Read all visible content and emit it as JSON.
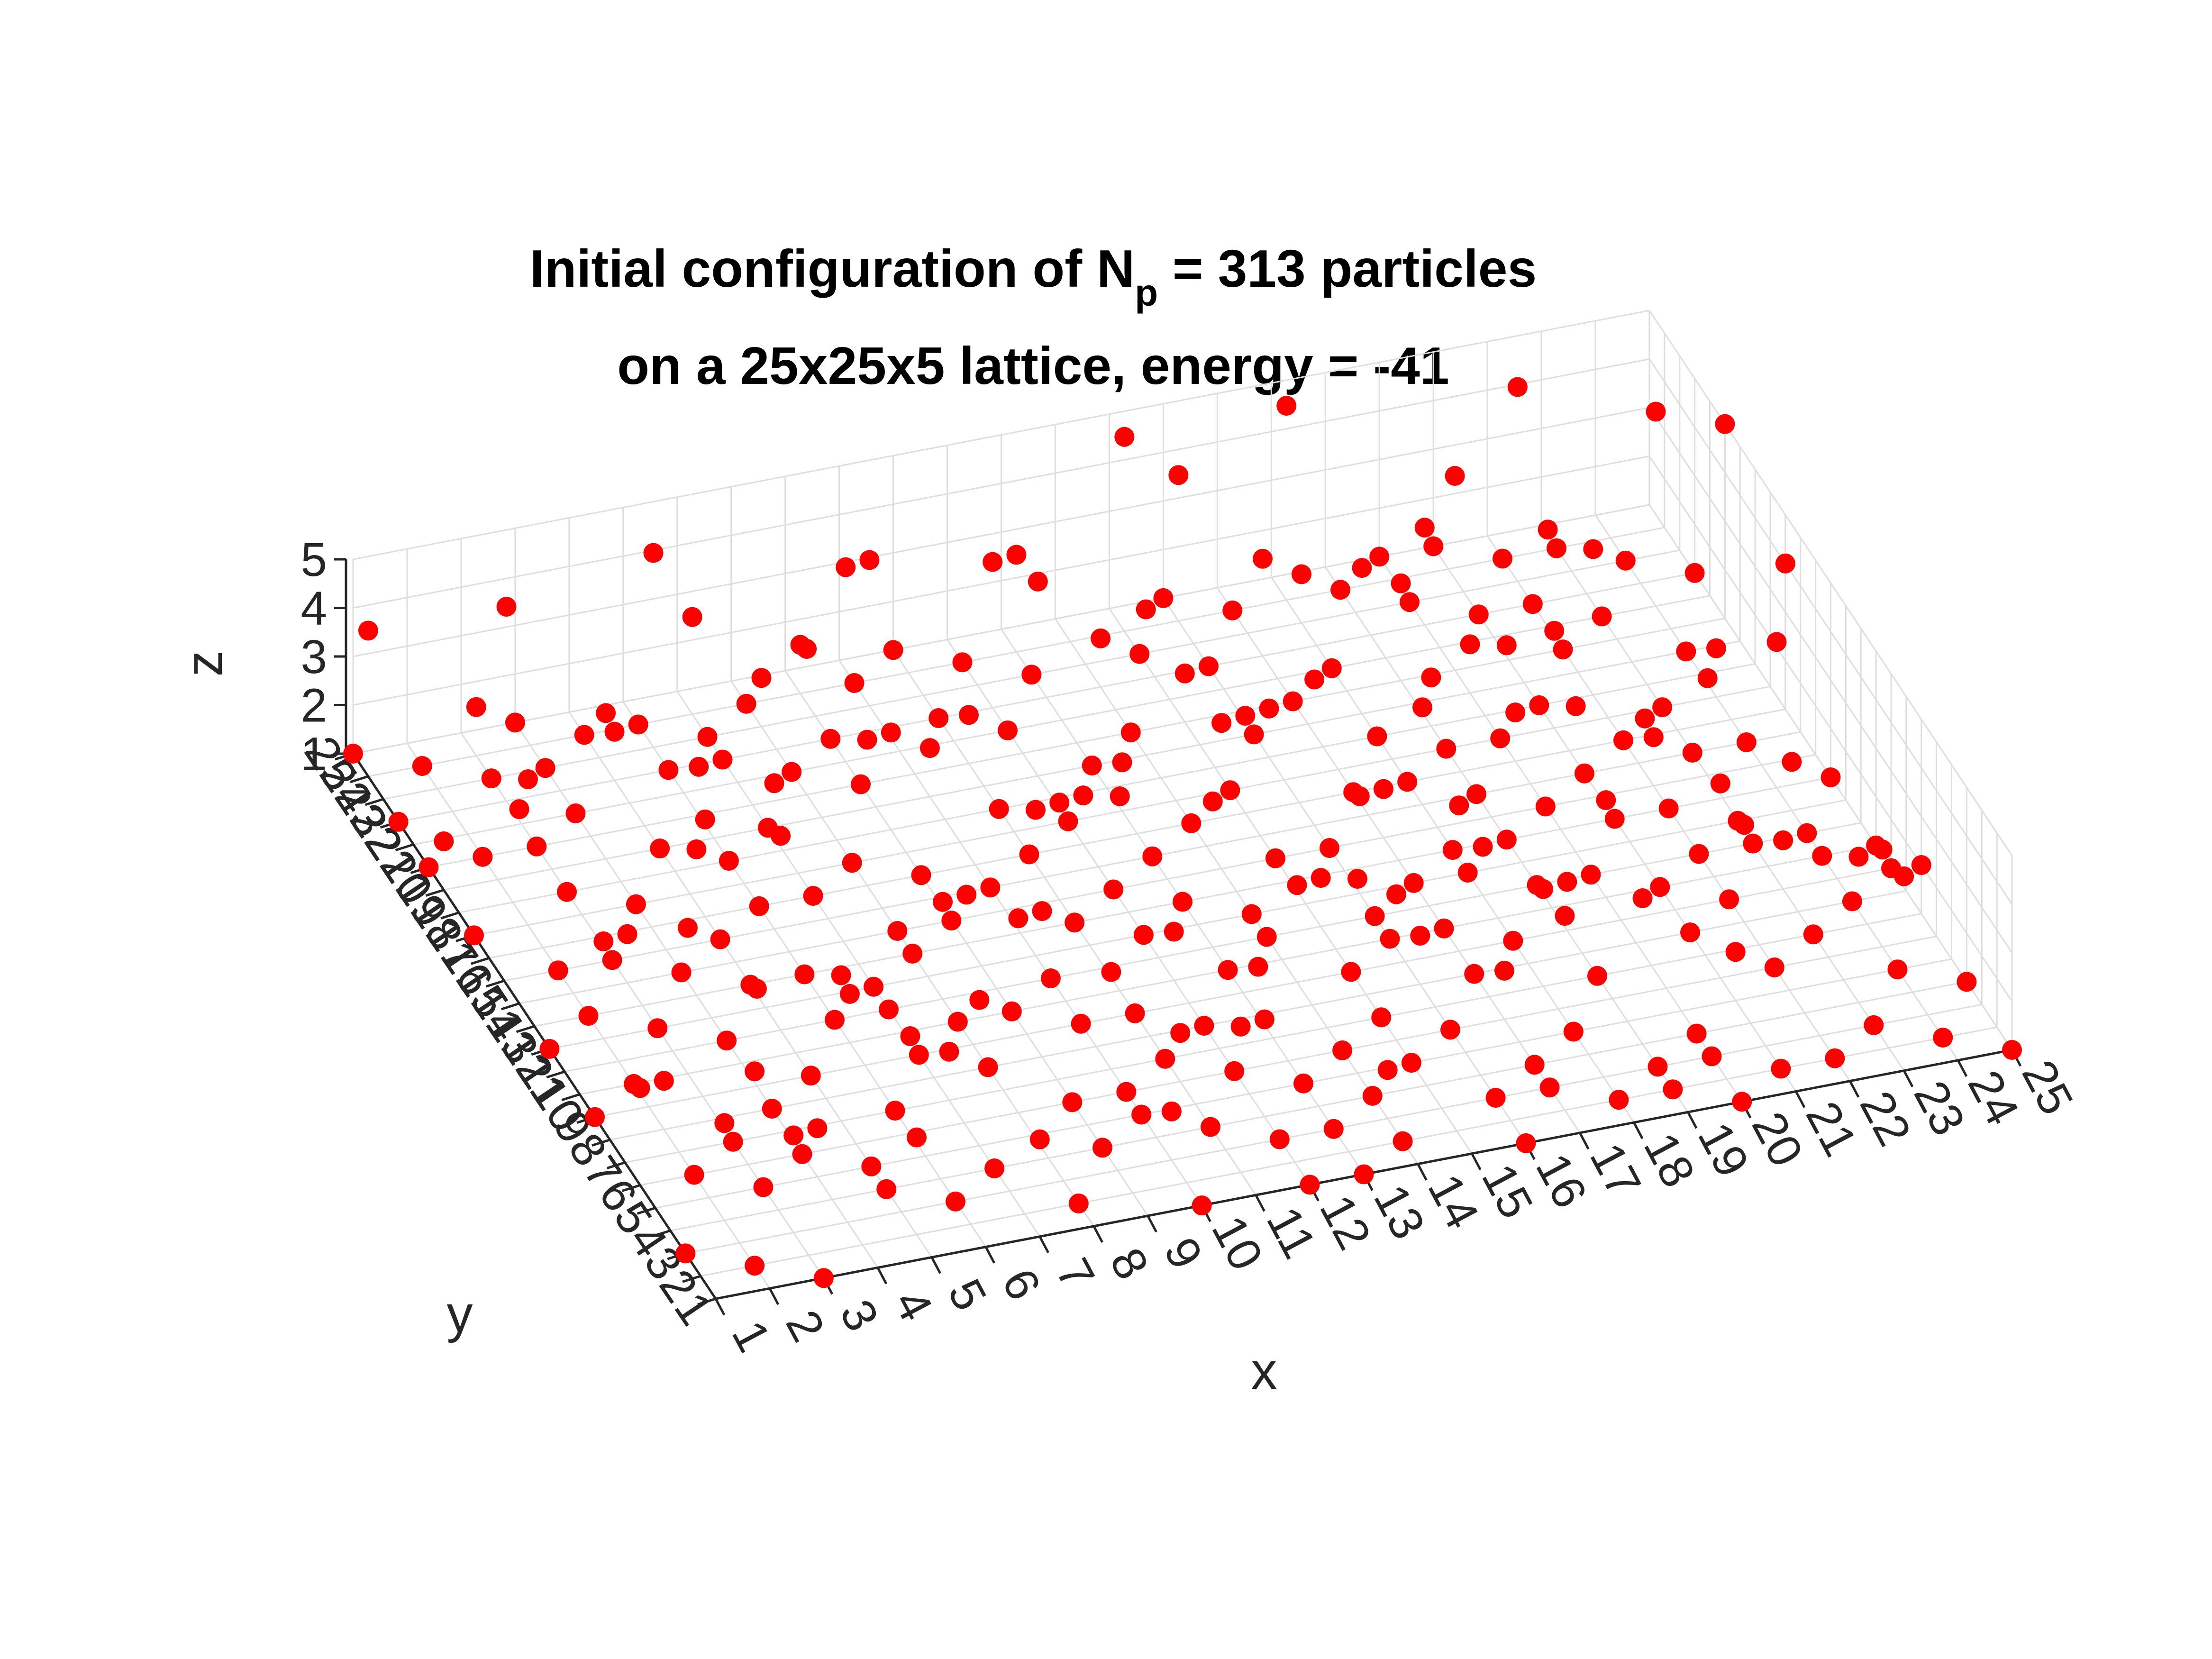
{
  "chart_data": {
    "type": "scatter3d",
    "title_main": "Initial configuration of N",
    "title_sub": "p",
    "title_rest": " = 313 particles",
    "title_line2": "on a 25x25x5 lattice, energy = -41",
    "xlabel": "x",
    "ylabel": "y",
    "zlabel": "z",
    "xlim": [
      1,
      25
    ],
    "ylim": [
      1,
      25
    ],
    "zlim": [
      1,
      5
    ],
    "grid": true,
    "marker_color": "#ff0000",
    "points": [
      [
        1,
        25,
        1
      ],
      [
        2,
        24,
        1
      ],
      [
        3,
        23,
        1
      ],
      [
        1,
        22,
        1
      ],
      [
        4,
        21,
        1
      ],
      [
        2,
        20,
        1
      ],
      [
        5,
        19,
        1
      ],
      [
        3,
        18,
        1
      ],
      [
        1,
        17,
        1
      ],
      [
        6,
        16,
        1
      ],
      [
        2,
        15,
        1
      ],
      [
        4,
        14,
        1
      ],
      [
        5,
        13,
        1
      ],
      [
        3,
        12,
        1
      ],
      [
        7,
        11,
        1
      ],
      [
        2,
        10,
        1
      ],
      [
        1,
        9,
        1
      ],
      [
        4,
        8,
        1
      ],
      [
        6,
        7,
        1
      ],
      [
        2,
        6,
        1
      ],
      [
        3,
        5,
        1
      ],
      [
        5,
        4,
        1
      ],
      [
        1,
        3,
        1
      ],
      [
        2,
        2,
        1
      ],
      [
        3,
        1,
        1
      ],
      [
        4,
        25,
        1
      ],
      [
        6,
        24,
        1
      ],
      [
        7,
        22,
        1
      ],
      [
        8,
        21,
        1
      ],
      [
        9,
        20,
        1
      ],
      [
        7,
        19,
        1
      ],
      [
        8,
        17,
        1
      ],
      [
        9,
        16,
        1
      ],
      [
        10,
        15,
        1
      ],
      [
        8,
        14,
        1
      ],
      [
        6,
        13,
        1
      ],
      [
        7,
        12,
        1
      ],
      [
        9,
        10,
        1
      ],
      [
        10,
        9,
        1
      ],
      [
        8,
        8,
        1
      ],
      [
        9,
        6,
        1
      ],
      [
        10,
        5,
        1
      ],
      [
        7,
        4,
        1
      ],
      [
        6,
        3,
        1
      ],
      [
        8,
        2,
        1
      ],
      [
        10,
        1,
        1
      ],
      [
        11,
        25,
        1
      ],
      [
        12,
        24,
        1
      ],
      [
        13,
        23,
        1
      ],
      [
        11,
        22,
        1
      ],
      [
        12,
        21,
        1
      ],
      [
        14,
        20,
        1
      ],
      [
        13,
        19,
        1
      ],
      [
        11,
        18,
        1
      ],
      [
        12,
        17,
        1
      ],
      [
        14,
        16,
        1
      ],
      [
        13,
        15,
        1
      ],
      [
        15,
        14,
        1
      ],
      [
        11,
        13,
        1
      ],
      [
        12,
        12,
        1
      ],
      [
        14,
        11,
        1
      ],
      [
        13,
        10,
        1
      ],
      [
        11,
        9,
        1
      ],
      [
        12,
        8,
        1
      ],
      [
        15,
        7,
        1
      ],
      [
        14,
        6,
        1
      ],
      [
        13,
        5,
        1
      ],
      [
        11,
        4,
        1
      ],
      [
        12,
        3,
        1
      ],
      [
        14,
        2,
        1
      ],
      [
        13,
        1,
        1
      ],
      [
        16,
        25,
        1
      ],
      [
        17,
        24,
        1
      ],
      [
        15,
        23,
        1
      ],
      [
        16,
        22,
        1
      ],
      [
        18,
        21,
        1
      ],
      [
        17,
        20,
        1
      ],
      [
        16,
        19,
        1
      ],
      [
        18,
        18,
        1
      ],
      [
        15,
        17,
        1
      ],
      [
        17,
        16,
        1
      ],
      [
        19,
        15,
        1
      ],
      [
        16,
        14,
        1
      ],
      [
        18,
        13,
        1
      ],
      [
        17,
        12,
        1
      ],
      [
        19,
        11,
        1
      ],
      [
        16,
        10,
        1
      ],
      [
        18,
        9,
        1
      ],
      [
        17,
        8,
        1
      ],
      [
        19,
        7,
        1
      ],
      [
        16,
        6,
        1
      ],
      [
        18,
        5,
        1
      ],
      [
        20,
        4,
        1
      ],
      [
        17,
        3,
        1
      ],
      [
        19,
        2,
        1
      ],
      [
        16,
        1,
        1
      ],
      [
        21,
        25,
        1
      ],
      [
        22,
        24,
        1
      ],
      [
        20,
        23,
        1
      ],
      [
        21,
        22,
        1
      ],
      [
        23,
        21,
        1
      ],
      [
        22,
        20,
        1
      ],
      [
        24,
        19,
        1
      ],
      [
        21,
        18,
        1
      ],
      [
        23,
        17,
        1
      ],
      [
        22,
        16,
        1
      ],
      [
        24,
        15,
        1
      ],
      [
        20,
        14,
        1
      ],
      [
        21,
        13,
        1
      ],
      [
        23,
        12,
        1
      ],
      [
        22,
        11,
        1
      ],
      [
        24,
        10,
        1
      ],
      [
        25,
        9,
        1
      ],
      [
        21,
        8,
        1
      ],
      [
        23,
        7,
        1
      ],
      [
        22,
        6,
        1
      ],
      [
        24,
        5,
        1
      ],
      [
        20,
        3,
        1
      ],
      [
        21,
        2,
        1
      ],
      [
        25,
        4,
        1
      ],
      [
        5,
        22,
        2
      ],
      [
        8,
        23,
        2
      ],
      [
        10,
        19,
        2
      ],
      [
        12,
        16,
        2
      ],
      [
        14,
        22,
        2
      ],
      [
        16,
        18,
        2
      ],
      [
        18,
        23,
        2
      ],
      [
        20,
        19,
        2
      ],
      [
        22,
        14,
        2
      ],
      [
        24,
        12,
        2
      ],
      [
        3,
        14,
        2
      ],
      [
        6,
        10,
        2
      ],
      [
        9,
        13,
        2
      ],
      [
        11,
        6,
        2
      ],
      [
        13,
        8,
        2
      ],
      [
        15,
        11,
        2
      ],
      [
        17,
        6,
        2
      ],
      [
        19,
        9,
        2
      ],
      [
        21,
        5,
        2
      ],
      [
        23,
        9,
        2
      ],
      [
        2,
        8,
        2
      ],
      [
        4,
        5,
        2
      ],
      [
        7,
        7,
        2
      ],
      [
        10,
        3,
        2
      ],
      [
        12,
        10,
        2
      ],
      [
        14,
        3,
        2
      ],
      [
        16,
        8,
        2
      ],
      [
        18,
        11,
        2
      ],
      [
        20,
        16,
        2
      ],
      [
        25,
        7,
        2
      ],
      [
        1,
        19,
        2
      ],
      [
        3,
        24,
        2
      ],
      [
        6,
        20,
        2
      ],
      [
        9,
        24,
        2
      ],
      [
        11,
        20,
        2
      ],
      [
        13,
        17,
        2
      ],
      [
        15,
        20,
        2
      ],
      [
        17,
        14,
        2
      ],
      [
        19,
        18,
        2
      ],
      [
        24,
        17,
        2
      ],
      [
        2,
        12,
        3
      ],
      [
        5,
        16,
        3
      ],
      [
        7,
        24,
        3
      ],
      [
        9,
        18,
        3
      ],
      [
        11,
        14,
        3
      ],
      [
        13,
        24,
        3
      ],
      [
        15,
        16,
        3
      ],
      [
        17,
        22,
        3
      ],
      [
        19,
        20,
        3
      ],
      [
        21,
        17,
        3
      ],
      [
        23,
        14,
        3
      ],
      [
        4,
        9,
        3
      ],
      [
        6,
        6,
        3
      ],
      [
        8,
        11,
        3
      ],
      [
        10,
        7,
        3
      ],
      [
        12,
        4,
        3
      ],
      [
        14,
        9,
        3
      ],
      [
        16,
        12,
        3
      ],
      [
        18,
        7,
        3
      ],
      [
        20,
        10,
        3
      ],
      [
        22,
        8,
        3
      ],
      [
        24,
        6,
        3
      ],
      [
        3,
        3,
        3
      ],
      [
        5,
        2,
        3
      ],
      [
        7,
        1,
        3
      ],
      [
        1,
        6,
        3
      ],
      [
        2,
        4,
        3
      ],
      [
        20,
        22,
        3
      ],
      [
        22,
        21,
        3
      ],
      [
        18,
        15,
        3
      ],
      [
        1,
        24,
        4
      ],
      [
        4,
        19,
        4
      ],
      [
        6,
        15,
        4
      ],
      [
        8,
        20,
        4
      ],
      [
        10,
        12,
        4
      ],
      [
        12,
        22,
        4
      ],
      [
        14,
        14,
        4
      ],
      [
        16,
        24,
        4
      ],
      [
        18,
        19,
        4
      ],
      [
        20,
        12,
        4
      ],
      [
        22,
        18,
        4
      ],
      [
        24,
        13,
        4
      ],
      [
        3,
        10,
        4
      ],
      [
        5,
        7,
        4
      ],
      [
        7,
        5,
        4
      ],
      [
        9,
        8,
        4
      ],
      [
        11,
        2,
        4
      ],
      [
        13,
        11,
        4
      ],
      [
        15,
        6,
        4
      ],
      [
        17,
        9,
        4
      ],
      [
        19,
        4,
        4
      ],
      [
        21,
        11,
        4
      ],
      [
        23,
        4,
        4
      ],
      [
        25,
        16,
        4
      ],
      [
        2,
        17,
        4
      ],
      [
        4,
        13,
        4
      ],
      [
        8,
        16,
        4
      ],
      [
        10,
        23,
        4
      ],
      [
        14,
        19,
        4
      ],
      [
        16,
        15,
        4
      ],
      [
        3,
        22,
        5
      ],
      [
        6,
        23,
        5
      ],
      [
        9,
        21,
        5
      ],
      [
        12,
        19,
        5
      ],
      [
        15,
        24,
        5
      ],
      [
        18,
        24,
        5
      ],
      [
        20,
        20,
        5
      ],
      [
        22,
        23,
        5
      ],
      [
        24,
        21,
        5
      ],
      [
        1,
        14,
        5
      ],
      [
        5,
        11,
        5
      ],
      [
        8,
        6,
        5
      ],
      [
        11,
        10,
        5
      ],
      [
        14,
        5,
        5
      ],
      [
        17,
        2,
        5
      ],
      [
        19,
        13,
        5
      ],
      [
        21,
        6,
        5
      ],
      [
        23,
        1,
        5
      ],
      [
        25,
        20,
        5
      ],
      [
        2,
        2,
        5
      ],
      [
        4,
        23,
        1
      ],
      [
        5,
        24,
        1
      ],
      [
        6,
        22,
        1
      ],
      [
        7,
        23,
        1
      ],
      [
        8,
        24,
        1
      ],
      [
        9,
        22,
        1
      ],
      [
        10,
        24,
        1
      ],
      [
        3,
        20,
        1
      ],
      [
        4,
        17,
        1
      ],
      [
        5,
        15,
        1
      ],
      [
        6,
        18,
        1
      ],
      [
        7,
        16,
        1
      ],
      [
        8,
        13,
        1
      ],
      [
        9,
        14,
        1
      ],
      [
        10,
        11,
        1
      ],
      [
        11,
        16,
        1
      ],
      [
        12,
        14,
        1
      ],
      [
        13,
        13,
        1
      ],
      [
        14,
        12,
        1
      ],
      [
        15,
        9,
        1
      ],
      [
        16,
        11,
        1
      ],
      [
        17,
        10,
        1
      ],
      [
        18,
        12,
        1
      ],
      [
        19,
        13,
        1
      ],
      [
        20,
        11,
        1
      ],
      [
        21,
        10,
        1
      ],
      [
        22,
        9,
        1
      ],
      [
        23,
        11,
        1
      ],
      [
        24,
        8,
        1
      ],
      [
        25,
        10,
        1
      ],
      [
        19,
        24,
        1
      ],
      [
        20,
        25,
        1
      ],
      [
        22,
        22,
        1
      ],
      [
        23,
        24,
        1
      ],
      [
        24,
        23,
        1
      ],
      [
        25,
        22,
        1
      ],
      [
        18,
        16,
        1
      ],
      [
        19,
        17,
        1
      ],
      [
        20,
        17,
        1
      ],
      [
        21,
        15,
        1
      ],
      [
        22,
        13,
        1
      ],
      [
        23,
        15,
        1
      ],
      [
        25,
        13,
        1
      ],
      [
        24,
        11,
        1
      ],
      [
        9,
        4,
        1
      ],
      [
        10,
        6,
        1
      ],
      [
        11,
        7,
        1
      ],
      [
        12,
        6,
        1
      ],
      [
        13,
        3,
        1
      ],
      [
        14,
        4,
        1
      ],
      [
        15,
        5,
        1
      ],
      [
        16,
        3,
        1
      ],
      [
        17,
        4,
        1
      ],
      [
        18,
        2,
        1
      ],
      [
        19,
        3,
        1
      ],
      [
        20,
        1,
        1
      ],
      [
        22,
        2,
        1
      ],
      [
        23,
        3,
        1
      ],
      [
        24,
        2,
        1
      ],
      [
        25,
        1,
        1
      ],
      [
        5,
        9,
        1
      ],
      [
        6,
        11,
        1
      ],
      [
        7,
        9,
        1
      ],
      [
        8,
        10,
        1
      ],
      [
        3,
        7,
        1
      ],
      [
        4,
        6,
        1
      ],
      [
        5,
        5,
        1
      ],
      [
        1,
        12,
        1
      ],
      [
        2,
        13,
        1
      ],
      [
        3,
        15,
        1
      ],
      [
        4,
        11,
        1
      ],
      [
        1,
        20,
        1
      ],
      [
        12,
        1,
        1
      ]
    ]
  }
}
